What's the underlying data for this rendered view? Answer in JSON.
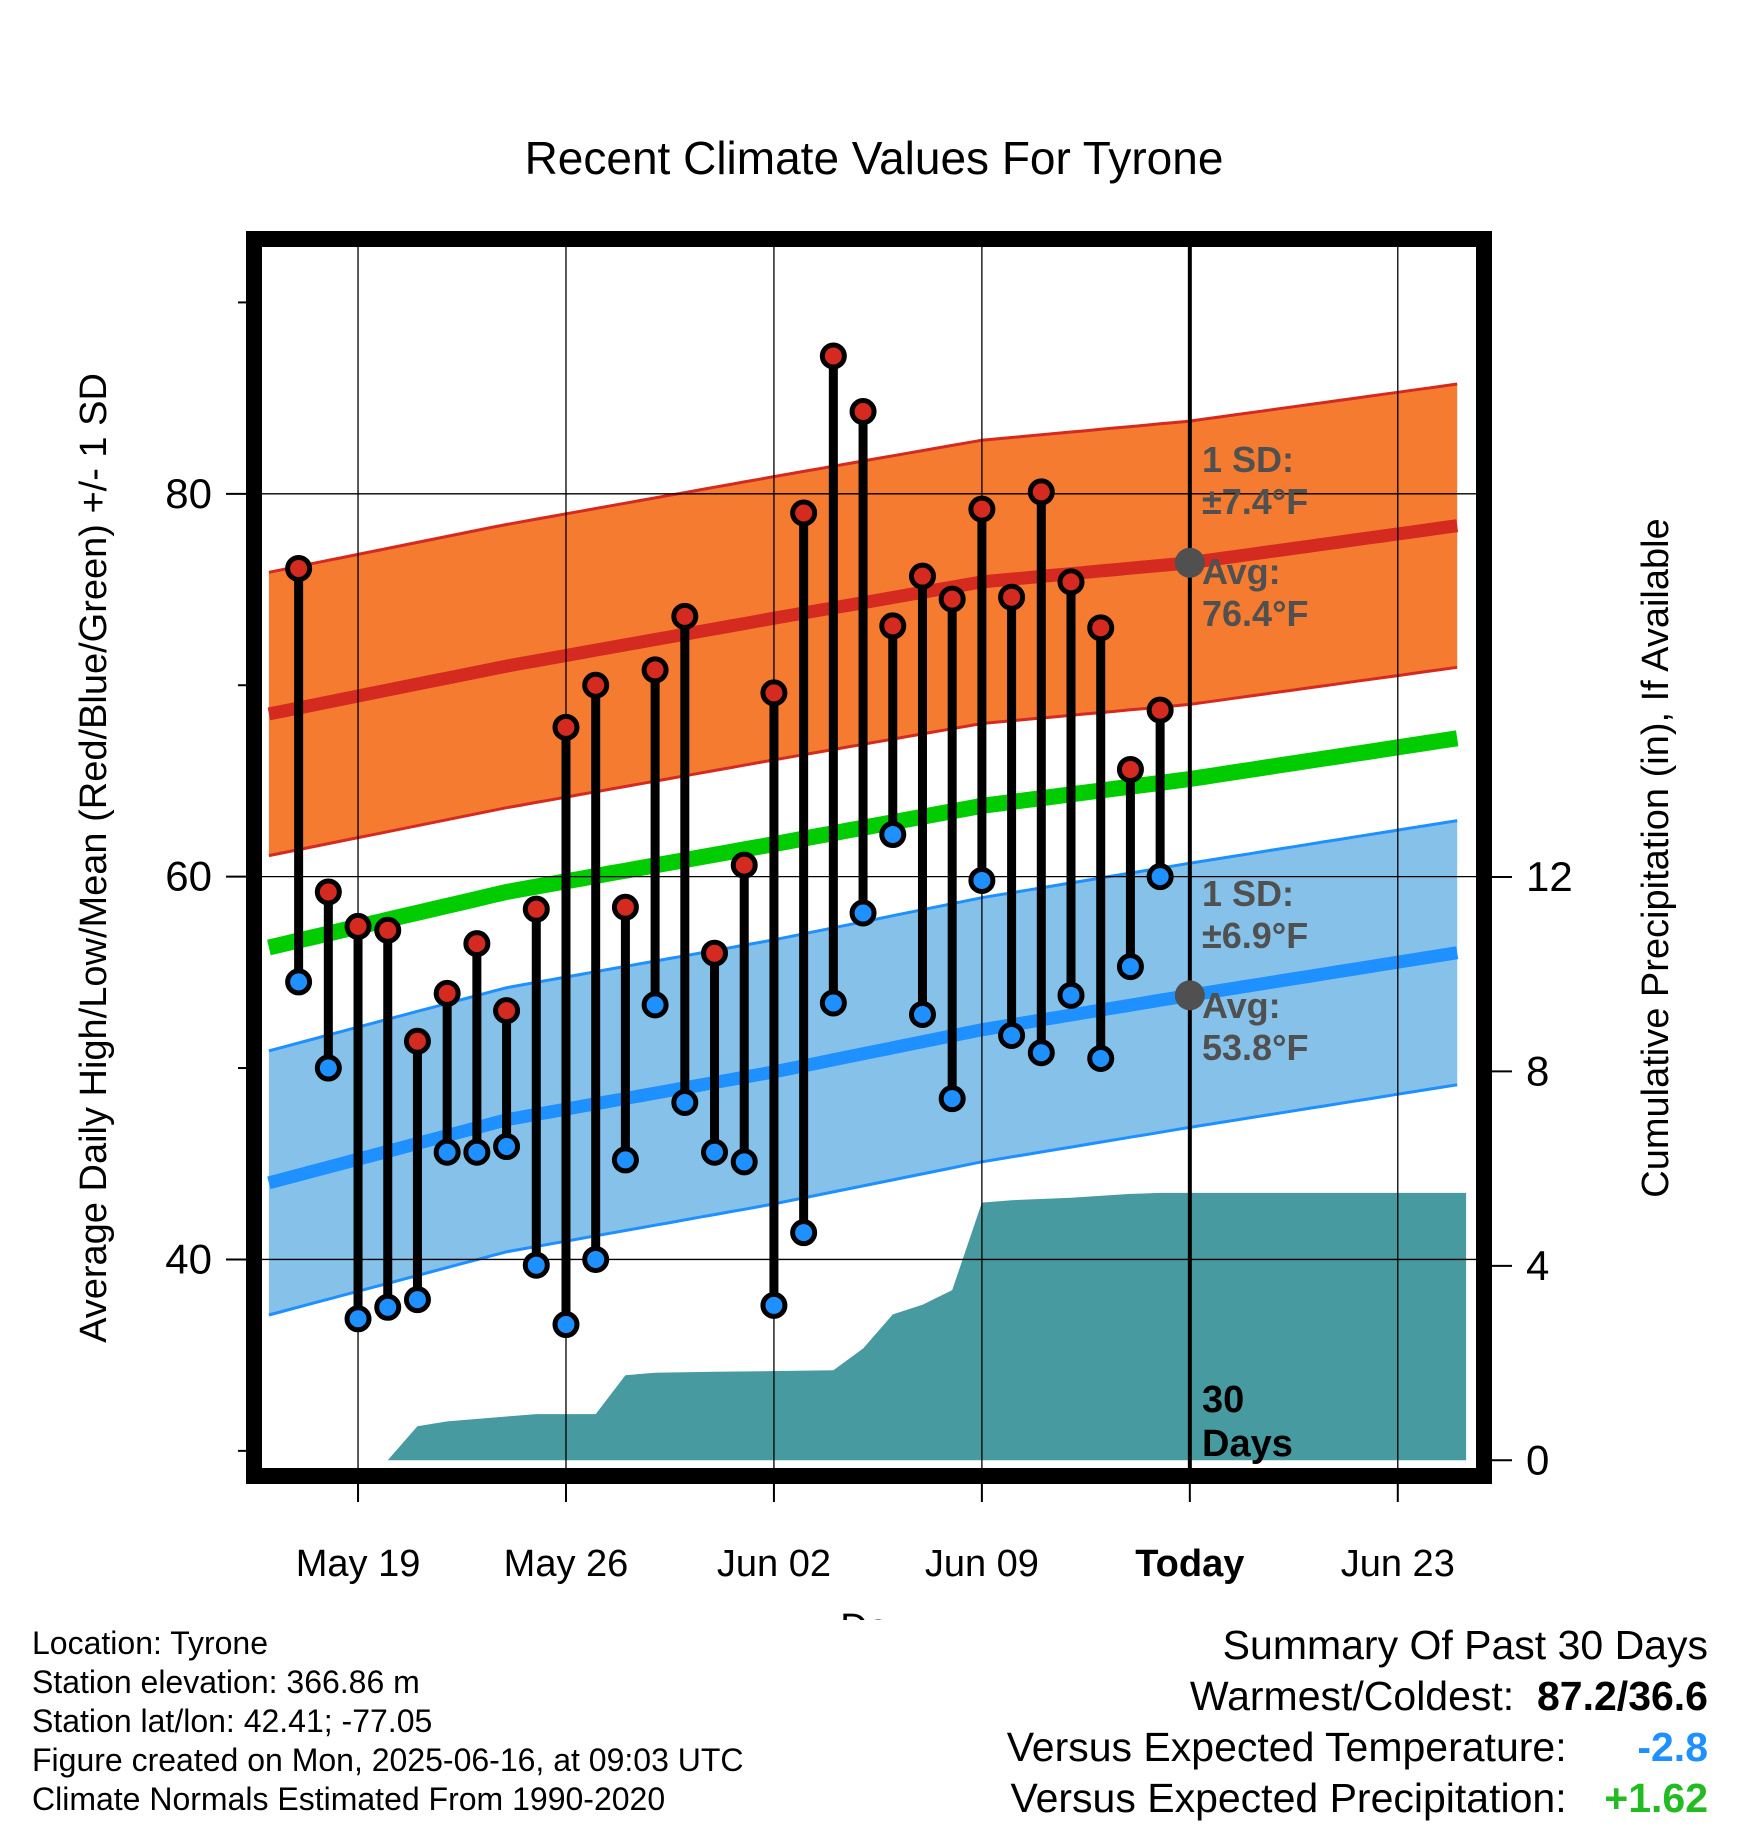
{
  "chart_data": {
    "type": "line",
    "title": "Recent Climate Values For Tyrone",
    "xlabel": "Day",
    "ylabel_left": "Average Daily High/Low/Mean (Red/Blue/Green) +/- 1 SD",
    "ylabel_right": "Cumulative Precipitation (in), If Available",
    "y_left_range": [
      29,
      93
    ],
    "y_left_ticks": [
      40,
      60,
      80
    ],
    "y_right_range": [
      -0.2,
      25
    ],
    "y_right_ticks": [
      0,
      4,
      8,
      12
    ],
    "x_range": [
      -3.3,
      37.7
    ],
    "x_ticks": [
      {
        "day": 0,
        "label": "May 19"
      },
      {
        "day": 7,
        "label": "May 26"
      },
      {
        "day": 14,
        "label": "Jun 02"
      },
      {
        "day": 21,
        "label": "Jun 09"
      },
      {
        "day": 28,
        "label": "Today"
      },
      {
        "day": 35,
        "label": "Jun 23"
      }
    ],
    "today_day": 28,
    "today_label": "30 Days",
    "daily_high": [
      {
        "day": -2,
        "value": 76.1
      },
      {
        "day": -1,
        "value": 59.2
      },
      {
        "day": 0,
        "value": 57.4
      },
      {
        "day": 1,
        "value": 57.2
      },
      {
        "day": 2,
        "value": 51.4
      },
      {
        "day": 3,
        "value": 53.9
      },
      {
        "day": 4,
        "value": 56.5
      },
      {
        "day": 5,
        "value": 53.0
      },
      {
        "day": 6,
        "value": 58.3
      },
      {
        "day": 7,
        "value": 67.8
      },
      {
        "day": 8,
        "value": 70.0
      },
      {
        "day": 9,
        "value": 58.4
      },
      {
        "day": 10,
        "value": 70.8
      },
      {
        "day": 11,
        "value": 73.6
      },
      {
        "day": 12,
        "value": 56.0
      },
      {
        "day": 13,
        "value": 60.6
      },
      {
        "day": 14,
        "value": 69.6
      },
      {
        "day": 15,
        "value": 79.0
      },
      {
        "day": 16,
        "value": 87.2
      },
      {
        "day": 17,
        "value": 84.3
      },
      {
        "day": 18,
        "value": 73.1
      },
      {
        "day": 19,
        "value": 75.7
      },
      {
        "day": 20,
        "value": 74.5
      },
      {
        "day": 21,
        "value": 79.2
      },
      {
        "day": 22,
        "value": 74.6
      },
      {
        "day": 23,
        "value": 80.1
      },
      {
        "day": 24,
        "value": 75.4
      },
      {
        "day": 25,
        "value": 73.0
      },
      {
        "day": 26,
        "value": 65.6
      },
      {
        "day": 27,
        "value": 68.7
      }
    ],
    "daily_low": [
      {
        "day": -2,
        "value": 54.5
      },
      {
        "day": -1,
        "value": 50.0
      },
      {
        "day": 0,
        "value": 36.9
      },
      {
        "day": 1,
        "value": 37.5
      },
      {
        "day": 2,
        "value": 37.9
      },
      {
        "day": 3,
        "value": 45.6
      },
      {
        "day": 4,
        "value": 45.6
      },
      {
        "day": 5,
        "value": 45.9
      },
      {
        "day": 6,
        "value": 39.7
      },
      {
        "day": 7,
        "value": 36.6
      },
      {
        "day": 8,
        "value": 40.0
      },
      {
        "day": 9,
        "value": 45.2
      },
      {
        "day": 10,
        "value": 53.3
      },
      {
        "day": 11,
        "value": 48.2
      },
      {
        "day": 12,
        "value": 45.6
      },
      {
        "day": 13,
        "value": 45.1
      },
      {
        "day": 14,
        "value": 37.6
      },
      {
        "day": 15,
        "value": 41.4
      },
      {
        "day": 16,
        "value": 53.4
      },
      {
        "day": 17,
        "value": 58.1
      },
      {
        "day": 18,
        "value": 62.2
      },
      {
        "day": 19,
        "value": 52.8
      },
      {
        "day": 20,
        "value": 48.4
      },
      {
        "day": 21,
        "value": 59.8
      },
      {
        "day": 22,
        "value": 51.7
      },
      {
        "day": 23,
        "value": 50.8
      },
      {
        "day": 24,
        "value": 53.8
      },
      {
        "day": 25,
        "value": 50.5
      },
      {
        "day": 26,
        "value": 55.3
      },
      {
        "day": 27,
        "value": 60.0
      }
    ],
    "normal_high": [
      {
        "day": -3,
        "value": 68.5
      },
      {
        "day": 5,
        "value": 71.0
      },
      {
        "day": 14,
        "value": 73.5
      },
      {
        "day": 21,
        "value": 75.4
      },
      {
        "day": 28,
        "value": 76.4
      },
      {
        "day": 37.3,
        "value": 78.4
      }
    ],
    "normal_high_sd": 7.4,
    "normal_low": [
      {
        "day": -3,
        "value": 44.0
      },
      {
        "day": 5,
        "value": 47.3
      },
      {
        "day": 14,
        "value": 49.8
      },
      {
        "day": 21,
        "value": 52.0
      },
      {
        "day": 28,
        "value": 53.8
      },
      {
        "day": 37.3,
        "value": 56.1
      }
    ],
    "normal_low_sd": 6.9,
    "normal_mean": [
      {
        "day": -3,
        "value": 56.3
      },
      {
        "day": 5,
        "value": 59.2
      },
      {
        "day": 14,
        "value": 61.7
      },
      {
        "day": 21,
        "value": 63.7
      },
      {
        "day": 28,
        "value": 65.1
      },
      {
        "day": 37.3,
        "value": 67.3
      }
    ],
    "cumulative_precip": [
      {
        "day": 1,
        "value": 0
      },
      {
        "day": 2,
        "value": 0.7
      },
      {
        "day": 3,
        "value": 0.8
      },
      {
        "day": 5,
        "value": 0.9
      },
      {
        "day": 6,
        "value": 0.95
      },
      {
        "day": 8,
        "value": 0.95
      },
      {
        "day": 9,
        "value": 1.75
      },
      {
        "day": 10,
        "value": 1.8
      },
      {
        "day": 12,
        "value": 1.82
      },
      {
        "day": 16,
        "value": 1.85
      },
      {
        "day": 17,
        "value": 2.3
      },
      {
        "day": 18,
        "value": 3.0
      },
      {
        "day": 19,
        "value": 3.2
      },
      {
        "day": 20,
        "value": 3.5
      },
      {
        "day": 21,
        "value": 5.3
      },
      {
        "day": 22,
        "value": 5.35
      },
      {
        "day": 24,
        "value": 5.4
      },
      {
        "day": 26,
        "value": 5.48
      },
      {
        "day": 27,
        "value": 5.5
      },
      {
        "day": 37.3,
        "value": 5.5
      }
    ],
    "annotations": {
      "high_sd": [
        "1 SD:",
        "±7.4°F"
      ],
      "high_avg": [
        "Avg:",
        "76.4°F"
      ],
      "low_sd": [
        "1 SD:",
        "±6.9°F"
      ],
      "low_avg": [
        "Avg:",
        "53.8°F"
      ]
    },
    "colors": {
      "high_band": "#f47b30",
      "high_line": "#d42a20",
      "low_band": "#85c1e8",
      "low_line": "#1e90ff",
      "mean_line": "#00cc00",
      "precip": "#479a9f",
      "high_marker": "#d42a20",
      "low_marker": "#1e90ff",
      "annotation": "#505050"
    }
  },
  "info": {
    "location": "Location: Tyrone",
    "elevation": "Station elevation: 366.86 m",
    "latlon": "Station lat/lon: 42.41; -77.05",
    "created": "Figure created on Mon, 2025-06-16, at 09:03 UTC",
    "normals": "Climate Normals Estimated From 1990-2020"
  },
  "summary": {
    "title": "Summary Of Past 30 Days",
    "warm_cold_label": "Warmest/Coldest:",
    "warm_cold_value": "87.2/36.6",
    "temp_label": "Versus Expected Temperature:",
    "temp_value": "-2.8",
    "temp_color": "#1e90ff",
    "precip_label": "Versus Expected Precipitation:",
    "precip_value": "+1.62",
    "precip_color": "#22bb22"
  }
}
